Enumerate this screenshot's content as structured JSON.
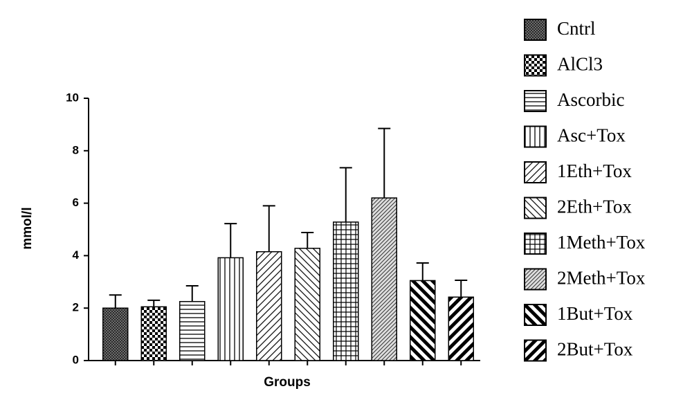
{
  "chart_data": {
    "type": "bar",
    "x_label": "Groups",
    "y_label": "mmol/l",
    "ylim": [
      0,
      10
    ],
    "yticks": [
      0,
      2,
      4,
      6,
      8,
      10
    ],
    "color": "#000000",
    "series": [
      {
        "name": "Cntrl",
        "pattern": "fine-crosshatch",
        "values": [
          2.0
        ],
        "errors": [
          0.5
        ]
      },
      {
        "name": "AlCl3",
        "pattern": "checker",
        "values": [
          2.05
        ],
        "errors": [
          0.25
        ]
      },
      {
        "name": "Ascorbic",
        "pattern": "horizontal",
        "values": [
          2.25
        ],
        "errors": [
          0.6
        ]
      },
      {
        "name": "Asc+Tox",
        "pattern": "vertical",
        "values": [
          3.92
        ],
        "errors": [
          1.3
        ]
      },
      {
        "name": "1Eth+Tox",
        "pattern": "diagonal-up",
        "values": [
          4.15
        ],
        "errors": [
          1.75
        ]
      },
      {
        "name": "2Eth+Tox",
        "pattern": "diagonal-down",
        "values": [
          4.28
        ],
        "errors": [
          0.6
        ]
      },
      {
        "name": "1Meth+Tox",
        "pattern": "grid",
        "values": [
          5.28
        ],
        "errors": [
          2.07
        ]
      },
      {
        "name": "2Meth+Tox",
        "pattern": "dense-diagonal",
        "values": [
          6.2
        ],
        "errors": [
          2.65
        ]
      },
      {
        "name": "1But+Tox",
        "pattern": "thick-down",
        "values": [
          3.05
        ],
        "errors": [
          0.67
        ]
      },
      {
        "name": "2But+Tox",
        "pattern": "thick-up",
        "values": [
          2.42
        ],
        "errors": [
          0.64
        ]
      }
    ]
  }
}
